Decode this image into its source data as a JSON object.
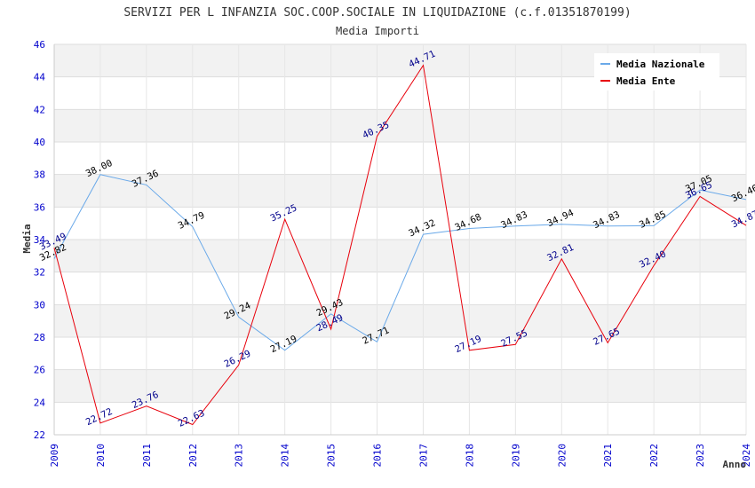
{
  "chart_data": {
    "type": "line",
    "title": "SERVIZI PER L INFANZIA SOC.COOP.SOCIALE IN LIQUIDAZIONE (c.f.01351870199)",
    "subtitle": "Media Importi",
    "xlabel": "Anno",
    "ylabel": "Media",
    "ylim": [
      22,
      46
    ],
    "yticks": [
      22,
      24,
      26,
      28,
      30,
      32,
      34,
      36,
      38,
      40,
      42,
      44,
      46
    ],
    "x": [
      "2009",
      "2010",
      "2011",
      "2012",
      "2013",
      "2014",
      "2015",
      "2016",
      "2017",
      "2018",
      "2019",
      "2020",
      "2021",
      "2022",
      "2023",
      "2024"
    ],
    "grid": true,
    "legend_position": "top-right",
    "series": [
      {
        "name": "Media Nazionale",
        "color": "#6aa9e9",
        "label_color": "#000000",
        "values": [
          32.82,
          38.0,
          37.36,
          34.79,
          29.24,
          27.19,
          29.43,
          27.71,
          34.32,
          34.68,
          34.83,
          34.94,
          34.83,
          34.85,
          37.05,
          36.46
        ],
        "labels": [
          "32.82",
          "38.00",
          "37.36",
          "34.79",
          "29.24",
          "27.19",
          "29.43",
          "27.71",
          "34.32",
          "34.68",
          "34.83",
          "34.94",
          "34.83",
          "34.85",
          "37.05",
          "36.46"
        ]
      },
      {
        "name": "Media Ente",
        "color": "#e8000b",
        "label_color": "#00008b",
        "values": [
          33.49,
          22.72,
          23.76,
          22.63,
          26.29,
          35.25,
          28.49,
          40.35,
          44.71,
          27.19,
          27.55,
          32.81,
          27.65,
          32.4,
          36.65,
          34.87
        ],
        "labels": [
          "33.49",
          "22.72",
          "23.76",
          "22.63",
          "26.29",
          "35.25",
          "28.49",
          "40.35",
          "44.71",
          "27.19",
          "27.55",
          "32.81",
          "27.65",
          "32.40",
          "36.65",
          "34.87"
        ]
      }
    ]
  }
}
